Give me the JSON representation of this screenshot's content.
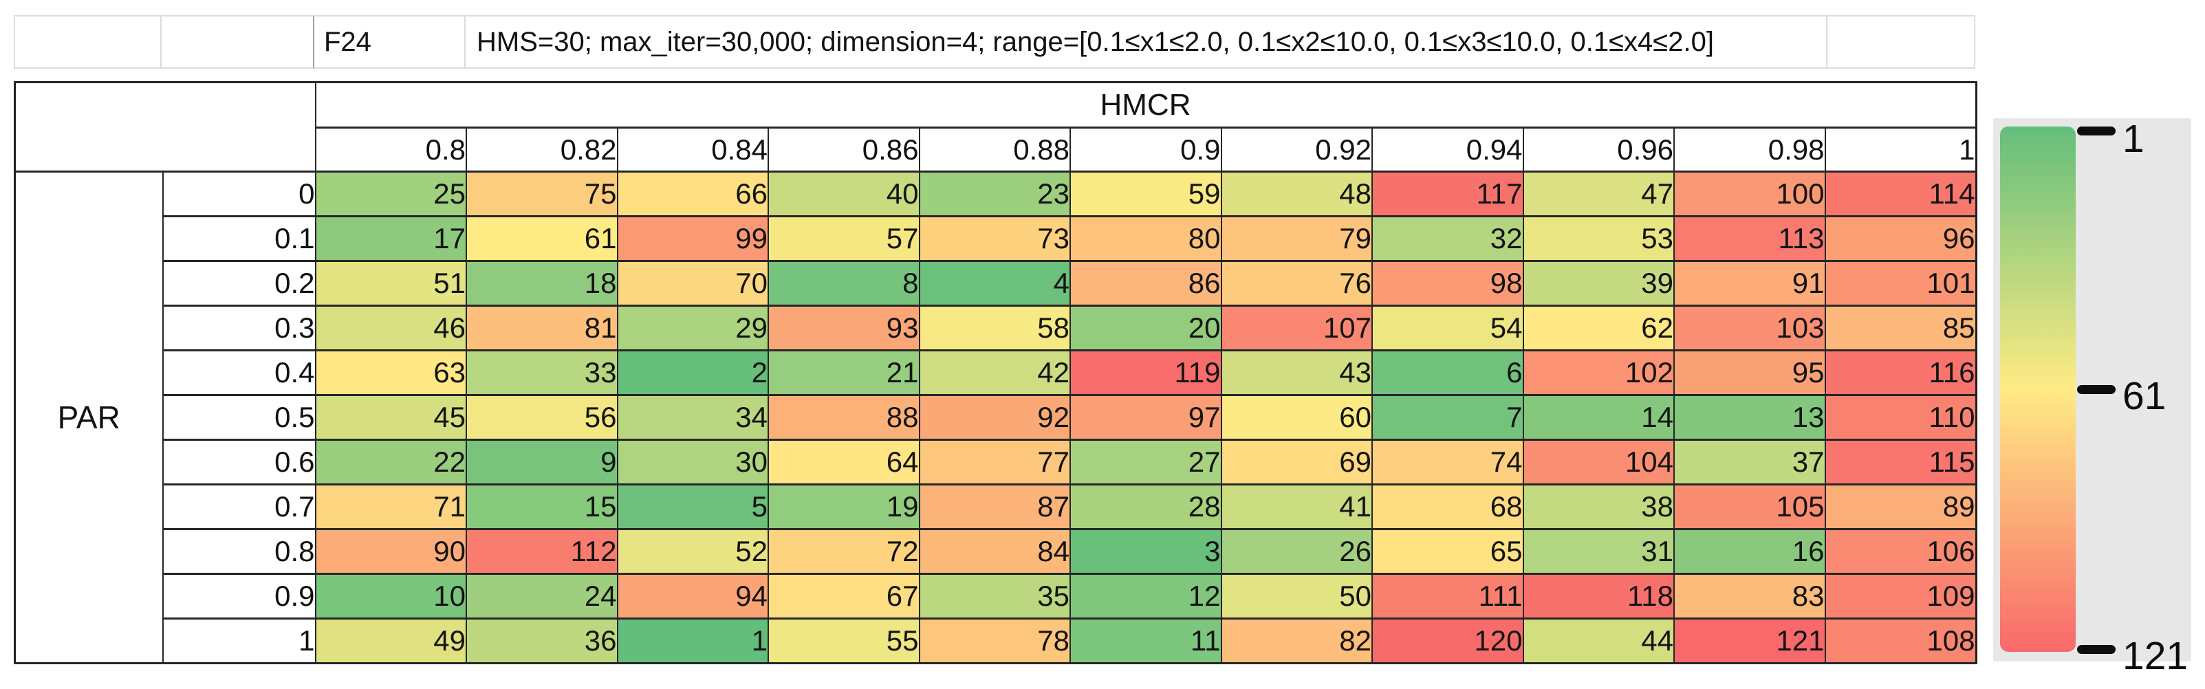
{
  "title_row": {
    "function_label": "F24",
    "settings": "HMS=30; max_iter=30,000; dimension=4; range=[0.1≤x1≤2.0, 0.1≤x2≤10.0, 0.1≤x3≤10.0, 0.1≤x4≤2.0]"
  },
  "chart_data": {
    "type": "heatmap",
    "x_label": "HMCR",
    "y_label": "PAR",
    "columns": [
      "0.8",
      "0.82",
      "0.84",
      "0.86",
      "0.88",
      "0.9",
      "0.92",
      "0.94",
      "0.96",
      "0.98",
      "1"
    ],
    "row_labels": [
      "0",
      "0.1",
      "0.2",
      "0.3",
      "0.4",
      "0.5",
      "0.6",
      "0.7",
      "0.8",
      "0.9",
      "1"
    ],
    "values": [
      [
        25,
        75,
        66,
        40,
        23,
        59,
        48,
        117,
        47,
        100,
        114
      ],
      [
        17,
        61,
        99,
        57,
        73,
        80,
        79,
        32,
        53,
        113,
        96
      ],
      [
        51,
        18,
        70,
        8,
        4,
        86,
        76,
        98,
        39,
        91,
        101
      ],
      [
        46,
        81,
        29,
        93,
        58,
        20,
        107,
        54,
        62,
        103,
        85
      ],
      [
        63,
        33,
        2,
        21,
        42,
        119,
        43,
        6,
        102,
        95,
        116
      ],
      [
        45,
        56,
        34,
        88,
        92,
        97,
        60,
        7,
        14,
        13,
        110
      ],
      [
        22,
        9,
        30,
        64,
        77,
        27,
        69,
        74,
        104,
        37,
        115
      ],
      [
        71,
        15,
        5,
        19,
        87,
        28,
        41,
        68,
        38,
        105,
        89
      ],
      [
        90,
        112,
        52,
        72,
        84,
        3,
        26,
        65,
        31,
        16,
        106
      ],
      [
        10,
        24,
        94,
        67,
        35,
        12,
        50,
        111,
        118,
        83,
        109
      ],
      [
        49,
        36,
        1,
        55,
        78,
        11,
        82,
        120,
        44,
        121,
        108
      ]
    ],
    "value_range": [
      1,
      121
    ],
    "color_scale": {
      "min": {
        "value": 1,
        "color": "#63BE7B"
      },
      "mid": {
        "value": 61,
        "color": "#FFEB84"
      },
      "max": {
        "value": 121,
        "color": "#F8696B"
      }
    },
    "legend_position": "right"
  },
  "legend": {
    "tick_labels": [
      "1",
      "61",
      "121"
    ],
    "panel_color": "#e7e7e7",
    "tick_color": "#0d0d0d"
  }
}
